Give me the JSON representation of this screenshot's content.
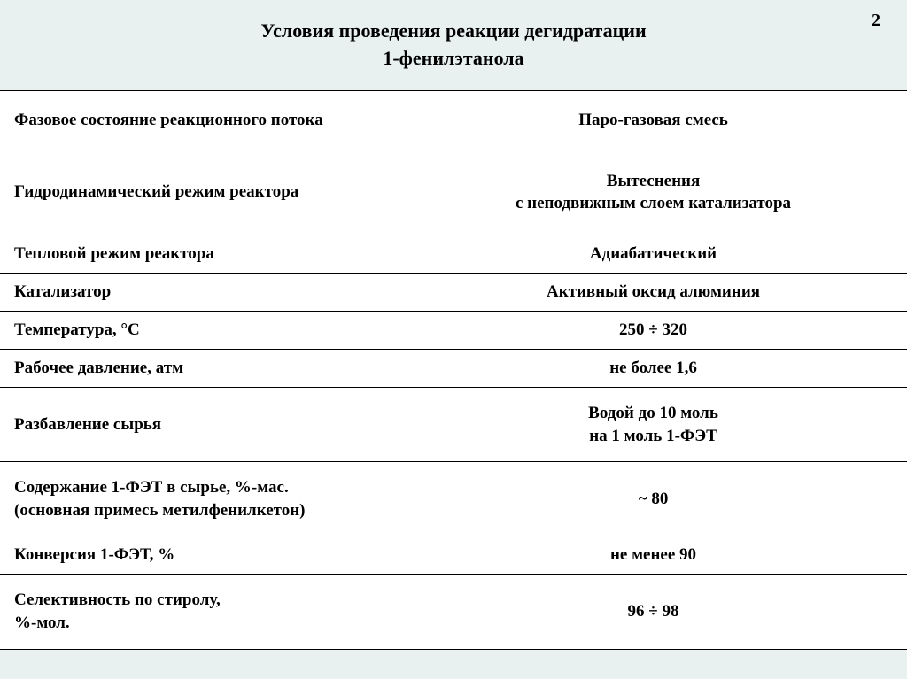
{
  "page_number": "2",
  "title_line1": "Условия проведения реакции дегидратации",
  "title_line2": "1-фенилэтанола",
  "table": {
    "background_color": "#ffffff",
    "header_bg": "#e8f0f0",
    "border_color": "#000000",
    "font_family": "Times New Roman",
    "param_fontsize": 19,
    "value_fontsize": 19,
    "column_widths": [
      "44%",
      "56%"
    ],
    "rows": [
      {
        "param": "Фазовое состояние реакционного потока",
        "value": "Паро-газовая смесь",
        "height": "tall"
      },
      {
        "param": "Гидродинамический режим реактора",
        "value": "Вытеснения\nс неподвижным слоем катализатора",
        "height": "tall"
      },
      {
        "param": "Тепловой режим реактора",
        "value": "Адиабатический",
        "height": "short"
      },
      {
        "param": "Катализатор",
        "value": "Активный оксид алюминия",
        "height": "short"
      },
      {
        "param": "Температура, °С",
        "value": "250 ÷ 320",
        "height": "short"
      },
      {
        "param": "Рабочее давление, атм",
        "value": "не более 1,6",
        "height": "short"
      },
      {
        "param": "Разбавление сырья",
        "value": "Водой до 10 моль\nна 1 моль 1-ФЭТ",
        "height": "med"
      },
      {
        "param": "Содержание 1-ФЭТ в сырье, %-мас.\n(основная примесь метилфенилкетон)",
        "value": "~ 80",
        "height": "med"
      },
      {
        "param": "Конверсия 1-ФЭТ, %",
        "value": "не менее 90",
        "height": "short"
      },
      {
        "param": "Селективность по стиролу,\n%-мол.",
        "value": "96 ÷ 98",
        "height": "med"
      }
    ]
  }
}
